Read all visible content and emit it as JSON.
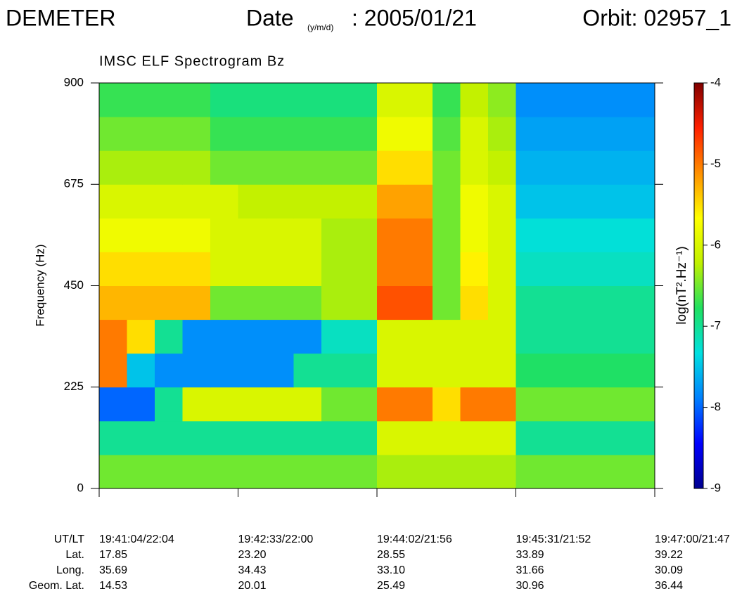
{
  "header": {
    "mission": "DEMETER",
    "date_label": "Date",
    "date_format": "(y/m/d)",
    "date": ": 2005/01/21",
    "orbit": "Orbit: 02957_1"
  },
  "chart_data": {
    "type": "heatmap",
    "title": "IMSC ELF Spectrogram Bz",
    "y_label": "Frequency (Hz)",
    "ylim": [
      0,
      900
    ],
    "yticks": [
      0,
      225,
      450,
      675,
      900
    ],
    "colorbar_label": "log(nT².Hz⁻¹)",
    "clim": [
      -9,
      -4
    ],
    "cticks": [
      -9,
      -8,
      -7,
      -6,
      -5,
      -4
    ],
    "colormap": [
      "#00008f",
      "#0000ff",
      "#0080ff",
      "#00e0e0",
      "#20e060",
      "#c0f000",
      "#ffff00",
      "#ff9000",
      "#ff2000",
      "#800000"
    ],
    "z": [
      [
        -6.5,
        -6.5,
        -6.5,
        -6.5,
        -6.5,
        -6.5,
        -6.5,
        -6.5,
        -6.5,
        -6.5,
        -6.3,
        -6.3,
        -6.3,
        -6.3,
        -6.3,
        -6.5,
        -6.5,
        -6.5,
        -6.5,
        -6.5
      ],
      [
        -7,
        -7,
        -7,
        -7,
        -7,
        -7,
        -7,
        -7,
        -7,
        -7,
        -6,
        -6,
        -6,
        -6,
        -6,
        -7,
        -7,
        -7,
        -7,
        -7
      ],
      [
        -8,
        -8,
        -7,
        -6,
        -6,
        -6,
        -6,
        -6,
        -6.5,
        -6.5,
        -5,
        -5,
        -5.5,
        -5,
        -5,
        -6.5,
        -6.5,
        -6.5,
        -6.5,
        -6.5
      ],
      [
        -5,
        -7.5,
        -7.8,
        -7.8,
        -7.8,
        -7.8,
        -7.8,
        -7,
        -7,
        -7,
        -6,
        -6,
        -6,
        -6,
        -6,
        -6.8,
        -6.8,
        -6.8,
        -6.8,
        -6.8
      ],
      [
        -5,
        -5.5,
        -7,
        -7.8,
        -7.8,
        -7.8,
        -7.8,
        -7.8,
        -7.2,
        -7.2,
        -6,
        -6,
        -6,
        -6,
        -6,
        -7,
        -7,
        -7,
        -7,
        -7
      ],
      [
        -5.3,
        -5.3,
        -5.3,
        -5.3,
        -6.5,
        -6.5,
        -6.5,
        -6.5,
        -6.3,
        -6.3,
        -4.8,
        -4.8,
        -6.5,
        -5.5,
        -6,
        -7,
        -7,
        -7,
        -7,
        -7
      ],
      [
        -5.5,
        -5.5,
        -5.5,
        -5.5,
        -6,
        -6,
        -6,
        -6,
        -6.3,
        -6.3,
        -5,
        -5,
        -6.5,
        -5.6,
        -6,
        -7.2,
        -7.2,
        -7.2,
        -7.2,
        -7.2
      ],
      [
        -5.8,
        -5.8,
        -5.8,
        -5.8,
        -6,
        -6,
        -6,
        -6,
        -6.3,
        -6.3,
        -5,
        -5,
        -6.5,
        -5.8,
        -6,
        -7.3,
        -7.3,
        -7.3,
        -7.3,
        -7.3
      ],
      [
        -6,
        -6,
        -6,
        -6,
        -6,
        -6.2,
        -6.2,
        -6.2,
        -6.2,
        -6.2,
        -5.2,
        -5.2,
        -6.5,
        -5.8,
        -6,
        -7.5,
        -7.5,
        -7.5,
        -7.5,
        -7.5
      ],
      [
        -6.3,
        -6.3,
        -6.3,
        -6.3,
        -6.5,
        -6.5,
        -6.5,
        -6.5,
        -6.5,
        -6.5,
        -5.5,
        -5.5,
        -6.5,
        -6,
        -6.2,
        -7.6,
        -7.6,
        -7.6,
        -7.6,
        -7.6
      ],
      [
        -6.5,
        -6.5,
        -6.5,
        -6.5,
        -6.7,
        -6.7,
        -6.7,
        -6.7,
        -6.7,
        -6.7,
        -5.8,
        -5.8,
        -6.6,
        -6,
        -6.3,
        -7.7,
        -7.7,
        -7.7,
        -7.7,
        -7.7
      ],
      [
        -6.7,
        -6.7,
        -6.7,
        -6.7,
        -6.9,
        -6.9,
        -6.9,
        -6.9,
        -6.9,
        -6.9,
        -6,
        -6,
        -6.7,
        -6.2,
        -6.4,
        -7.8,
        -7.8,
        -7.8,
        -7.8,
        -7.8
      ]
    ],
    "x_table": {
      "rows": [
        {
          "label": "UT/LT",
          "values": [
            "19:41:04/22:04",
            "19:42:33/22:00",
            "19:44:02/21:56",
            "19:45:31/21:52",
            "19:47:00/21:47"
          ]
        },
        {
          "label": "Lat.",
          "values": [
            "17.85",
            "23.20",
            "28.55",
            "33.89",
            "39.22"
          ]
        },
        {
          "label": "Long.",
          "values": [
            "35.69",
            "34.43",
            "33.10",
            "31.66",
            "30.09"
          ]
        },
        {
          "label": "Geom. Lat.",
          "values": [
            "14.53",
            "20.01",
            "25.49",
            "30.96",
            "36.44"
          ]
        }
      ]
    }
  }
}
